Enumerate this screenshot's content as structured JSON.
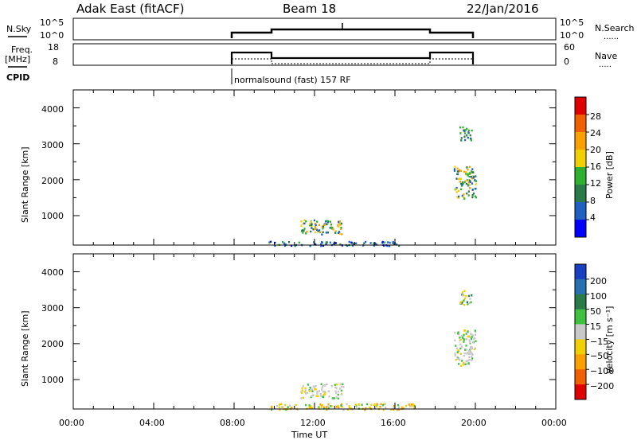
{
  "header": {
    "station": "Adak East (fitACF)",
    "beam": "Beam 18",
    "date": "22/Jan/2016"
  },
  "sky_panel": {
    "left_label": "N.Sky",
    "left_ticks": [
      "10^5",
      "10^0"
    ],
    "right_ticks": [
      "10^5",
      "10^0"
    ],
    "right_label": "N.Search",
    "right_legend": "......"
  },
  "freq_panel": {
    "left_label_line1": "Freq.",
    "left_label_line2": "[MHz]",
    "left_ticks": [
      "18",
      "8"
    ],
    "right_ticks": [
      "60",
      "0"
    ],
    "right_label": "Nave",
    "right_legend": "....."
  },
  "cpid_panel": {
    "label": "CPID",
    "text": "normalsound (fast) 157 RF"
  },
  "power_panel": {
    "ylabel": "Slant Range [km]",
    "yticks": [
      "4000",
      "3000",
      "2000",
      "1000"
    ],
    "colorbar_label": "Power [dB]",
    "colorbar_ticks": [
      "28",
      "24",
      "20",
      "16",
      "12",
      "8",
      "4"
    ],
    "colorbar_colors": [
      "#e00000",
      "#f06000",
      "#f7a000",
      "#f0d000",
      "#30b030",
      "#2a7a4a",
      "#2060c0",
      "#0000ff"
    ]
  },
  "velocity_panel": {
    "ylabel": "Slant Range [km]",
    "yticks": [
      "4000",
      "3000",
      "2000",
      "1000"
    ],
    "colorbar_label": "Velocity [m s⁻¹]",
    "colorbar_ticks": [
      "200",
      "100",
      "50",
      "15",
      "−15",
      "−50",
      "−100",
      "−200"
    ],
    "colorbar_colors": [
      "#1840c0",
      "#2870b0",
      "#2a7a4a",
      "#40c040",
      "#c8c8c8",
      "#f0d000",
      "#f7a000",
      "#f06000",
      "#e00000"
    ]
  },
  "x_axis": {
    "label": "Time UT",
    "ticks": [
      "00:00",
      "04:00",
      "08:00",
      "12:00",
      "16:00",
      "20:00",
      "00:00"
    ]
  },
  "chart_data": {
    "type": "heatmap",
    "x_range_hours": [
      0,
      24
    ],
    "y_range_km": [
      180,
      4500
    ],
    "operating_window_hours": [
      8,
      20
    ],
    "frequency_mhz": {
      "x": [
        8,
        10,
        10,
        18,
        18,
        20
      ],
      "y": [
        14,
        14,
        11,
        11,
        14,
        14
      ]
    },
    "nave": {
      "x": [
        8,
        10,
        10,
        18,
        18,
        20
      ],
      "y": [
        16,
        16,
        0,
        0,
        16,
        16
      ]
    },
    "power_regions": [
      {
        "t": [
          11.3,
          13.4
        ],
        "r": [
          500,
          900
        ],
        "level": "yellow-green"
      },
      {
        "t": [
          9.7,
          16.2
        ],
        "r": [
          180,
          300
        ],
        "level": "blue"
      },
      {
        "t": [
          18.9,
          20.0
        ],
        "r": [
          1500,
          2400
        ],
        "level": "green-yellow"
      },
      {
        "t": [
          19.2,
          19.8
        ],
        "r": [
          3100,
          3500
        ],
        "level": "blue-green"
      }
    ],
    "velocity_regions": [
      {
        "t": [
          11.3,
          13.4
        ],
        "r": [
          500,
          900
        ],
        "level": "near-zero"
      },
      {
        "t": [
          9.7,
          17.0
        ],
        "r": [
          180,
          350
        ],
        "level": "negative"
      },
      {
        "t": [
          18.9,
          20.0
        ],
        "r": [
          1400,
          2400
        ],
        "level": "near-zero"
      },
      {
        "t": [
          19.2,
          19.8
        ],
        "r": [
          3100,
          3500
        ],
        "level": "mixed"
      }
    ]
  }
}
